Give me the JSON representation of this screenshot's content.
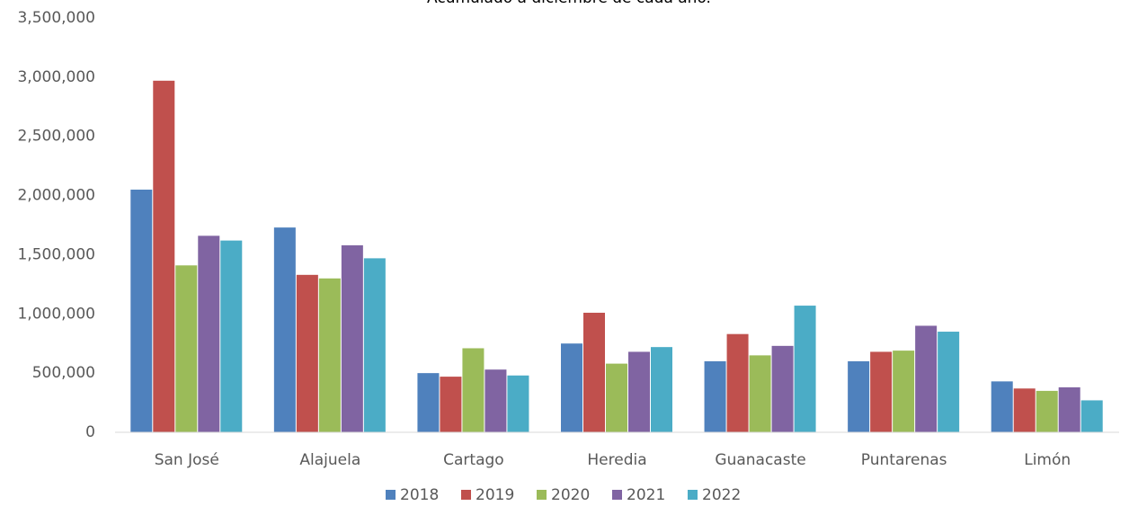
{
  "chart_data": {
    "type": "bar",
    "subtitle": "Acumulado a diciembre de cada año.",
    "categories": [
      "San José",
      "Alajuela",
      "Cartago",
      "Heredia",
      "Guanacaste",
      "Puntarenas",
      "Limón"
    ],
    "series": [
      {
        "name": "2018",
        "color": "#4f81bd",
        "values": [
          2050000,
          1730000,
          500000,
          750000,
          600000,
          600000,
          430000
        ]
      },
      {
        "name": "2019",
        "color": "#c0504d",
        "values": [
          2970000,
          1330000,
          470000,
          1010000,
          830000,
          680000,
          370000
        ]
      },
      {
        "name": "2020",
        "color": "#9bbb59",
        "values": [
          1410000,
          1300000,
          710000,
          580000,
          650000,
          690000,
          350000
        ]
      },
      {
        "name": "2021",
        "color": "#8064a2",
        "values": [
          1660000,
          1580000,
          530000,
          680000,
          730000,
          900000,
          380000
        ]
      },
      {
        "name": "2022",
        "color": "#4bacc6",
        "values": [
          1620000,
          1470000,
          480000,
          720000,
          1070000,
          850000,
          270000
        ]
      }
    ],
    "ylim": [
      0,
      3500000
    ],
    "yticks": [
      0,
      {
        "value": 500000,
        "label": "500,000"
      },
      {
        "value": 1000000,
        "label": "1,000,000"
      },
      {
        "value": 1500000,
        "label": "1,500,000"
      },
      {
        "value": 2000000,
        "label": "2,000,000"
      },
      {
        "value": 2500000,
        "label": "2,500,000"
      },
      {
        "value": 3000000,
        "label": "3,000,000"
      },
      {
        "value": 3500000,
        "label": "3,500,000"
      }
    ],
    "grid": false,
    "legend": "bottom"
  }
}
